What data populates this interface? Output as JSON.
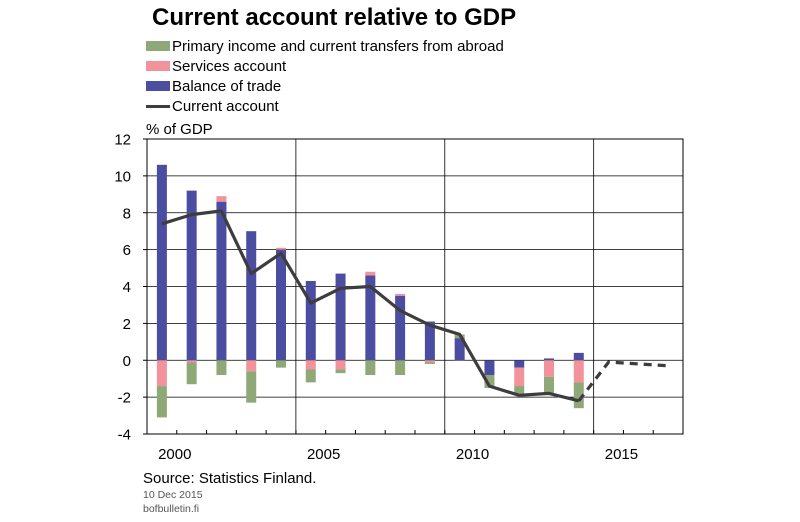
{
  "chart_data": {
    "type": "bar",
    "title": "Current account relative to GDP",
    "ylabel": "% of GDP",
    "ylim": [
      -4,
      12
    ],
    "yticks": [
      12,
      10,
      8,
      6,
      4,
      2,
      0,
      -2,
      -4
    ],
    "x_tick_labels": [
      "2000",
      "2005",
      "2010",
      "2015"
    ],
    "xlim": [
      1999,
      2017
    ],
    "grid": true,
    "legend_position": "top-left",
    "stacked": true,
    "x": [
      1999,
      2000,
      2001,
      2002,
      2003,
      2004,
      2005,
      2006,
      2007,
      2008,
      2009,
      2010,
      2011,
      2012,
      2013
    ],
    "series": [
      {
        "name": "Primary income and current transfers from abroad",
        "kind": "bar",
        "color": "#8fa878",
        "values": [
          -1.7,
          -1.2,
          -0.8,
          -1.7,
          -0.4,
          -0.7,
          -0.2,
          -0.8,
          -0.8,
          -0.1,
          0.2,
          -0.7,
          -0.5,
          -0.9,
          -1.4
        ]
      },
      {
        "name": "Services account",
        "kind": "bar",
        "color": "#f2939b",
        "values": [
          -1.4,
          -0.1,
          0.3,
          -0.6,
          0.1,
          -0.5,
          -0.5,
          0.2,
          0.1,
          -0.1,
          0.0,
          0.0,
          -1.0,
          -0.9,
          -1.2
        ]
      },
      {
        "name": "Balance of trade",
        "kind": "bar",
        "color": "#4b4ea0",
        "values": [
          10.6,
          9.2,
          8.6,
          7.0,
          6.0,
          4.3,
          4.7,
          4.6,
          3.5,
          2.1,
          1.2,
          -0.8,
          -0.4,
          0.1,
          0.4
        ]
      },
      {
        "name": "Current account",
        "kind": "line",
        "color": "#3d3d3d",
        "x": [
          1999,
          2000,
          2001,
          2002,
          2003,
          2004,
          2005,
          2006,
          2007,
          2008,
          2009,
          2010,
          2011,
          2012,
          2013
        ],
        "values": [
          7.4,
          7.9,
          8.1,
          4.7,
          5.8,
          3.1,
          3.9,
          4.0,
          2.7,
          1.9,
          1.4,
          -1.4,
          -1.9,
          -1.8,
          -2.2
        ]
      },
      {
        "name": "Current account (forecast)",
        "kind": "dashed-line",
        "color": "#3d3d3d",
        "x": [
          2013,
          2014,
          2015,
          2016
        ],
        "values": [
          -2.2,
          -0.1,
          -0.2,
          -0.3
        ]
      }
    ]
  },
  "footer": {
    "source": "Source: Statistics Finland.",
    "date": "10 Dec 2015",
    "site": "bofbulletin.fi"
  }
}
